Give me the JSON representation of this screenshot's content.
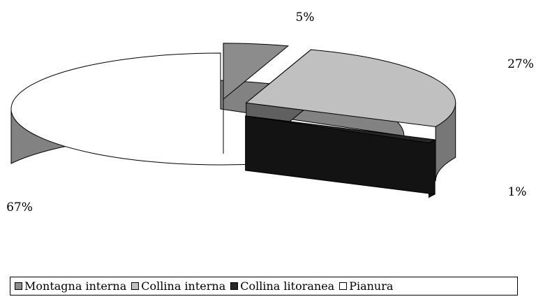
{
  "chart_data": {
    "type": "pie",
    "title": "",
    "categories": [
      "Montagna interna",
      "Collina interna",
      "Collina litoranea",
      "Pianura"
    ],
    "values": [
      5,
      27,
      1,
      67
    ],
    "data_labels": [
      "5%",
      "27%",
      "1%",
      "67%"
    ],
    "colors": [
      "#8c8c8c",
      "#c0c0c0",
      "#262626",
      "#ffffff"
    ],
    "exploded": true,
    "three_d": true,
    "legend_position": "bottom"
  }
}
